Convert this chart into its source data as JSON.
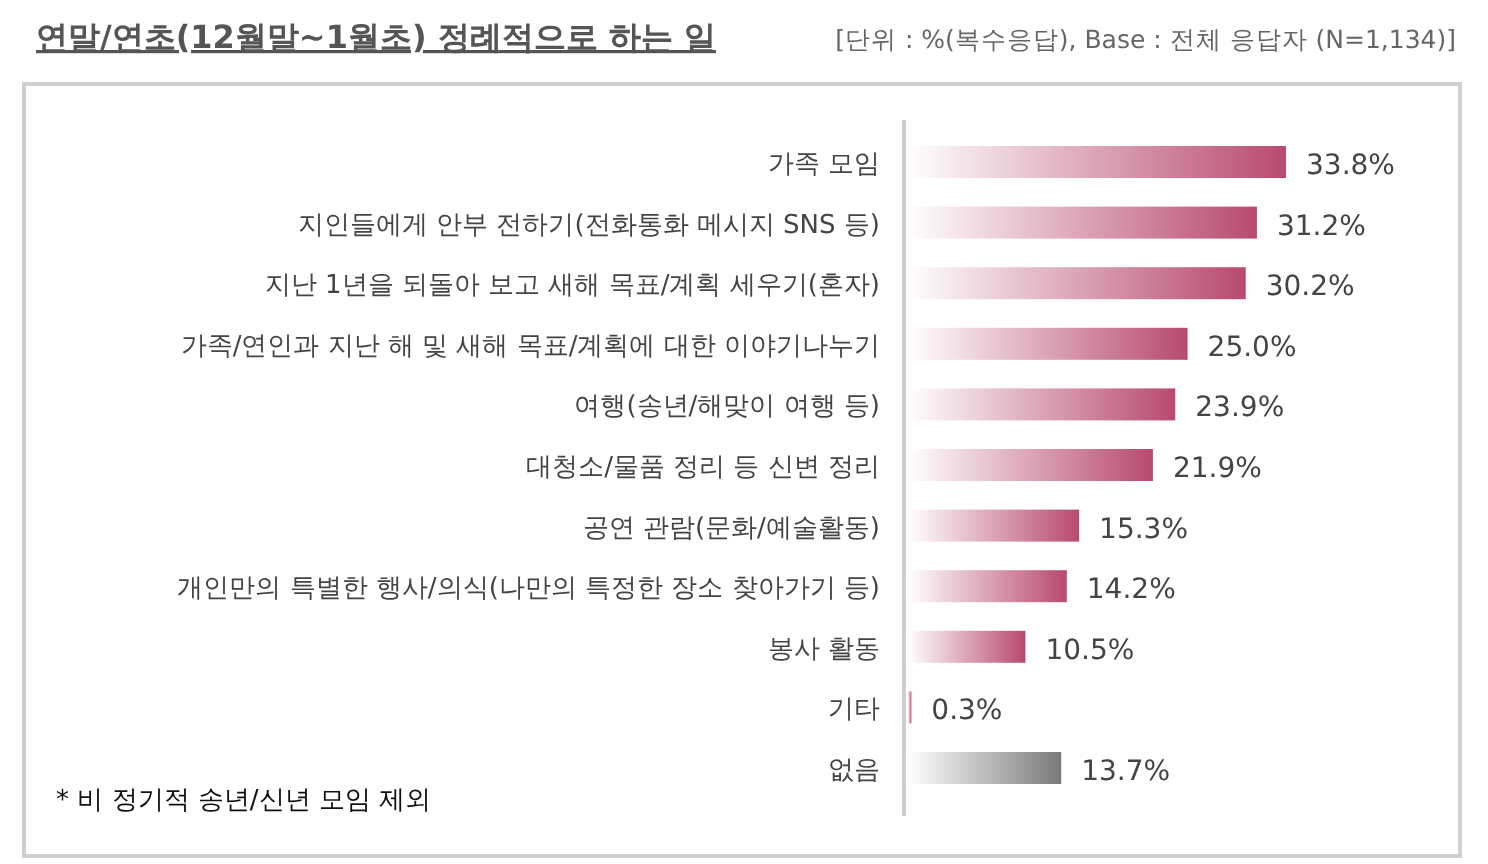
{
  "chart_data": {
    "type": "bar",
    "orientation": "horizontal",
    "title": "연말/연초(12월말~1월초) 정례적으로 하는 일",
    "subtitle": "[단위 : %(복수응답), Base : 전체 응답자 (N=1,134)]",
    "categories": [
      "가족 모임",
      "지인들에게 안부 전하기(전화통화 메시지 SNS 등)",
      "지난 1년을 되돌아 보고 새해 목표/계획 세우기(혼자)",
      "가족/연인과 지난 해 및 새해 목표/계획에 대한 이야기나누기",
      "여행(송년/해맞이 여행 등)",
      "대청소/물품 정리 등 신변 정리",
      "공연 관람(문화/예술활동)",
      "개인만의 특별한 행사/의식(나만의 특정한 장소 찾아가기 등)",
      "봉사 활동",
      "기타",
      "없음"
    ],
    "values": [
      33.8,
      31.2,
      30.2,
      25.0,
      23.9,
      21.9,
      15.3,
      14.2,
      10.5,
      0.3,
      13.7
    ],
    "value_labels": [
      "33.8%",
      "31.2%",
      "30.2%",
      "25.0%",
      "23.9%",
      "21.9%",
      "15.3%",
      "14.2%",
      "10.5%",
      "0.3%",
      "13.7%"
    ],
    "colors": [
      "#b84a6e",
      "#b84a6e",
      "#b84a6e",
      "#b84a6e",
      "#b84a6e",
      "#b84a6e",
      "#b84a6e",
      "#b84a6e",
      "#b84a6e",
      "#b84a6e",
      "#7a7a7a"
    ],
    "annotations": [
      "* 비 정기적 송년/신년 모임 제외"
    ]
  }
}
